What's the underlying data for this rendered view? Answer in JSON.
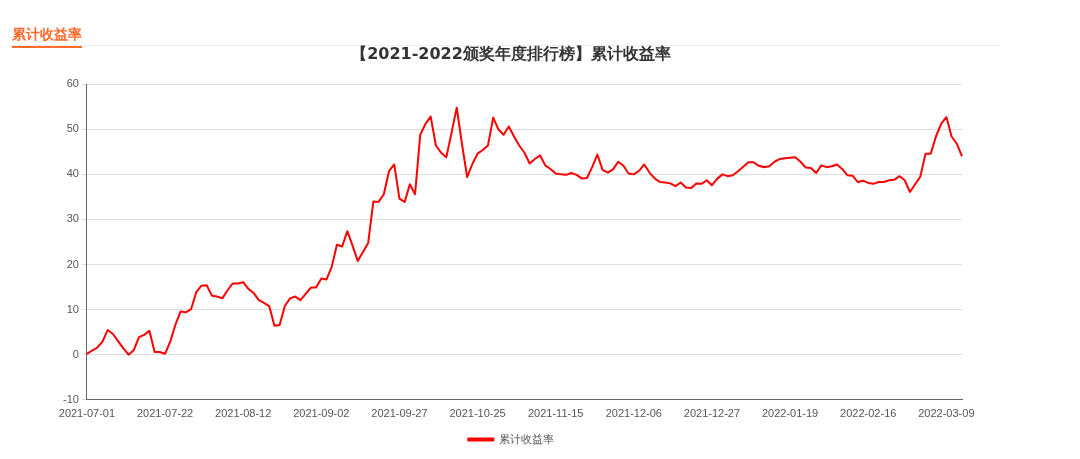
{
  "chart_data": {
    "type": "line",
    "title": "【2021-2022颁奖年度排行榜】累计收益率",
    "annotations": [
      "累计收益率"
    ],
    "categories": [
      "2021-07-01",
      null,
      null,
      null,
      null,
      null,
      null,
      null,
      null,
      null,
      null,
      null,
      null,
      null,
      null,
      "2021-07-22",
      null,
      null,
      null,
      null,
      null,
      null,
      null,
      null,
      null,
      null,
      null,
      null,
      null,
      null,
      "2021-08-12",
      null,
      null,
      null,
      null,
      null,
      null,
      null,
      null,
      null,
      null,
      null,
      null,
      null,
      null,
      "2021-09-02",
      null,
      null,
      null,
      null,
      null,
      null,
      null,
      null,
      null,
      null,
      null,
      null,
      null,
      null,
      "2021-09-27",
      null,
      null,
      null,
      null,
      null,
      null,
      null,
      null,
      null,
      null,
      null,
      null,
      null,
      null,
      "2021-10-25",
      null,
      null,
      null,
      null,
      null,
      null,
      null,
      null,
      null,
      null,
      null,
      null,
      null,
      null,
      "2021-11-15",
      null,
      null,
      null,
      null,
      null,
      null,
      null,
      null,
      null,
      null,
      null,
      null,
      null,
      null,
      "2021-12-06",
      null,
      null,
      null,
      null,
      null,
      null,
      null,
      null,
      null,
      null,
      null,
      null,
      null,
      null,
      "2021-12-27",
      null,
      null,
      null,
      null,
      null,
      null,
      null,
      null,
      null,
      null,
      null,
      null,
      null,
      null,
      "2022-01-19",
      null,
      null,
      null,
      null,
      null,
      null,
      null,
      null,
      null,
      null,
      null,
      null,
      null,
      null,
      "2022-02-16",
      null,
      null,
      null,
      null,
      null,
      null,
      null,
      null,
      null,
      null,
      null,
      null,
      null,
      null,
      "2022-03-09",
      null,
      null,
      null
    ],
    "series": [
      {
        "name": "累计收益率",
        "color": "#ff0000",
        "values": [
          0.2,
          0.9,
          1.6,
          2.9,
          5.5,
          4.6,
          3.0,
          1.4,
          0,
          1.0,
          3.9,
          4.4,
          5.3,
          0.6,
          0.6,
          0.2,
          2.9,
          6.7,
          9.6,
          9.4,
          10.1,
          13.9,
          15.3,
          15.4,
          13.1,
          12.9,
          12.5,
          14.3,
          15.8,
          15.8,
          16.1,
          14.6,
          13.7,
          12.1,
          11.5,
          10.8,
          6.4,
          6.6,
          10.8,
          12.5,
          12.9,
          12.1,
          13.5,
          14.9,
          14.9,
          16.9,
          16.7,
          19.5,
          24.4,
          24.0,
          27.4,
          24.2,
          20.8,
          22.8,
          24.8,
          34.0,
          33.9,
          35.6,
          40.7,
          42.2,
          34.6,
          33.9,
          37.8,
          35.6,
          48.8,
          51.2,
          52.8,
          46.4,
          44.8,
          43.8,
          49.2,
          54.8,
          46.8,
          39.4,
          42.3,
          44.6,
          45.4,
          46.4,
          52.6,
          50.0,
          48.8,
          50.6,
          48.4,
          46.4,
          44.8,
          42.4,
          43.4,
          44.2,
          42.0,
          41.2,
          40.2,
          40.0,
          39.9,
          40.3,
          39.9,
          39.1,
          39.2,
          41.6,
          44.4,
          41.0,
          40.4,
          41.1,
          42.8,
          41.9,
          40.2,
          40.0,
          40.8,
          42.2,
          40.4,
          39.1,
          38.3,
          38.2,
          38.0,
          37.4,
          38.2,
          37.1,
          37.0,
          38.0,
          37.9,
          38.7,
          37.6,
          39.0,
          40.0,
          39.6,
          39.8,
          40.7,
          41.7,
          42.7,
          42.7,
          41.9,
          41.6,
          41.8,
          42.8,
          43.4,
          43.6,
          43.7,
          43.8,
          42.8,
          41.5,
          41.4,
          40.3,
          42.0,
          41.6,
          41.8,
          42.2,
          41.2,
          39.8,
          39.7,
          38.3,
          38.6,
          38.1,
          37.9,
          38.3,
          38.3,
          38.7,
          38.8,
          39.6,
          38.7,
          36.1,
          37.8,
          39.5,
          44.6,
          44.6,
          48.4,
          51.2,
          52.7,
          48.4,
          46.8,
          44.0
        ]
      }
    ],
    "ylim": [
      -10,
      60
    ],
    "yticks": [
      -10,
      0,
      10,
      20,
      30,
      40,
      50,
      60
    ],
    "grid": "y",
    "legend": "bottom",
    "line_style": "solid"
  }
}
